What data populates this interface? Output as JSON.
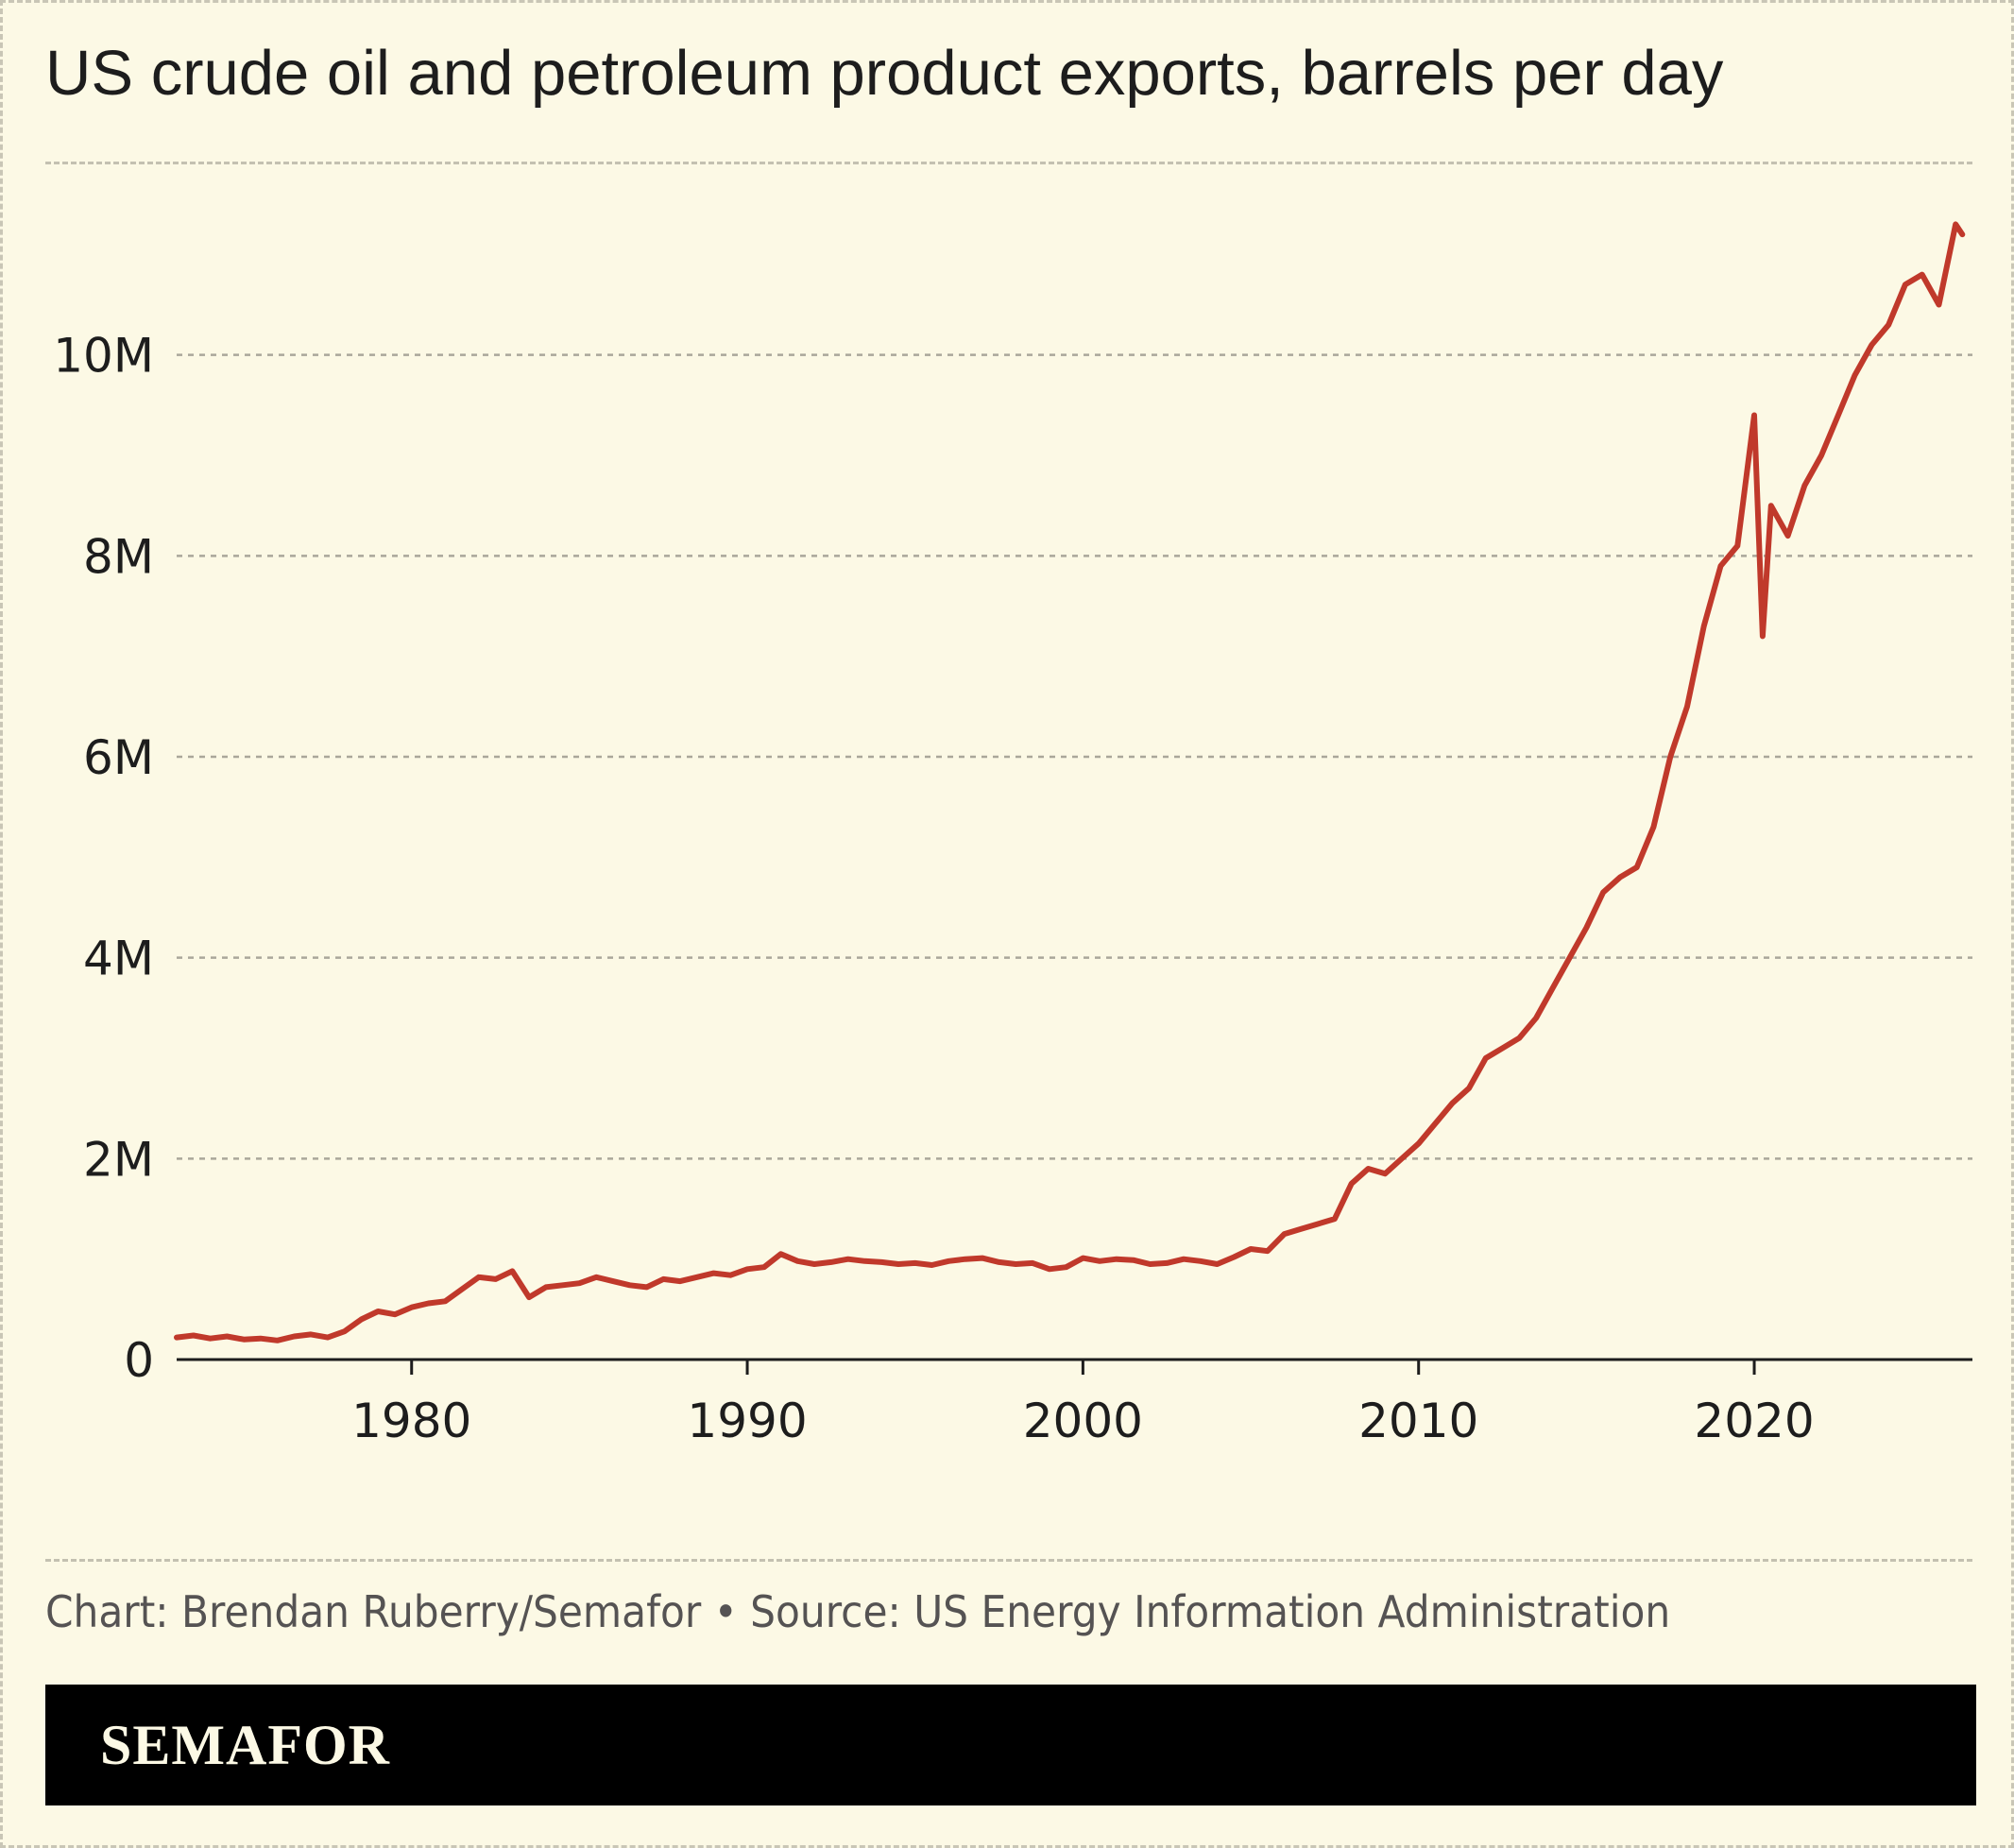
{
  "title": "US crude oil and petroleum product exports, barrels per day",
  "credit": "Chart: Brendan Ruberry/Semafor • Source: US Energy Information Administration",
  "brand": "SEMAFOR",
  "colors": {
    "background": "#fcf9e5",
    "line": "#c0392b",
    "text": "#1d1d1d",
    "grid": "#aaa79a",
    "brand_bar": "#000000"
  },
  "chart_data": {
    "type": "line",
    "title": "US crude oil and petroleum product exports, barrels per day",
    "xlabel": "",
    "ylabel": "",
    "xlim": [
      1973,
      2026.5
    ],
    "ylim": [
      0,
      12000000
    ],
    "x_ticks": [
      {
        "value": 1980,
        "label": "1980"
      },
      {
        "value": 1990,
        "label": "1990"
      },
      {
        "value": 2000,
        "label": "2000"
      },
      {
        "value": 2010,
        "label": "2010"
      },
      {
        "value": 2020,
        "label": "2020"
      }
    ],
    "y_ticks": [
      {
        "value": 0,
        "label": "0"
      },
      {
        "value": 2000000,
        "label": "2M"
      },
      {
        "value": 4000000,
        "label": "4M"
      },
      {
        "value": 6000000,
        "label": "6M"
      },
      {
        "value": 8000000,
        "label": "8M"
      },
      {
        "value": 10000000,
        "label": "10M"
      }
    ],
    "grid": "horizontal dashed",
    "legend": "none",
    "series": [
      {
        "x": [
          1973.0,
          1973.5,
          1974.0,
          1974.5,
          1975.0,
          1975.5,
          1976.0,
          1976.5,
          1977.0,
          1977.5,
          1978.0,
          1978.5,
          1979.0,
          1979.5,
          1980.0,
          1980.5,
          1981.0,
          1981.5,
          1982.0,
          1982.5,
          1983.0,
          1983.5,
          1984.0,
          1984.5,
          1985.0,
          1985.5,
          1986.0,
          1986.5,
          1987.0,
          1987.5,
          1988.0,
          1988.5,
          1989.0,
          1989.5,
          1990.0,
          1990.5,
          1991.0,
          1991.5,
          1992.0,
          1992.5,
          1993.0,
          1993.5,
          1994.0,
          1994.5,
          1995.0,
          1995.5,
          1996.0,
          1996.5,
          1997.0,
          1997.5,
          1998.0,
          1998.5,
          1999.0,
          1999.5,
          2000.0,
          2000.5,
          2001.0,
          2001.5,
          2002.0,
          2002.5,
          2003.0,
          2003.5,
          2004.0,
          2004.5,
          2005.0,
          2005.5,
          2006.0,
          2006.5,
          2007.0,
          2007.5,
          2008.0,
          2008.5,
          2009.0,
          2009.5,
          2010.0,
          2010.5,
          2011.0,
          2011.5,
          2012.0,
          2012.5,
          2013.0,
          2013.5,
          2014.0,
          2014.5,
          2015.0,
          2015.5,
          2016.0,
          2016.5,
          2017.0,
          2017.5,
          2018.0,
          2018.5,
          2019.0,
          2019.5,
          2020.0,
          2020.25,
          2020.5,
          2021.0,
          2021.5,
          2022.0,
          2022.5,
          2023.0,
          2023.5,
          2024.0,
          2024.5,
          2025.0,
          2025.5,
          2026.0,
          2026.2
        ],
        "y": [
          220000,
          240000,
          210000,
          230000,
          200000,
          210000,
          190000,
          230000,
          250000,
          220000,
          280000,
          400000,
          480000,
          450000,
          520000,
          560000,
          580000,
          700000,
          820000,
          800000,
          880000,
          620000,
          720000,
          740000,
          760000,
          820000,
          780000,
          740000,
          720000,
          800000,
          780000,
          820000,
          860000,
          840000,
          900000,
          920000,
          1050000,
          980000,
          950000,
          970000,
          1000000,
          980000,
          970000,
          950000,
          960000,
          940000,
          980000,
          1000000,
          1010000,
          970000,
          950000,
          960000,
          900000,
          920000,
          1010000,
          980000,
          1000000,
          990000,
          950000,
          960000,
          1000000,
          980000,
          950000,
          1020000,
          1100000,
          1080000,
          1250000,
          1300000,
          1350000,
          1400000,
          1750000,
          1900000,
          1850000,
          2000000,
          2150000,
          2350000,
          2550000,
          2700000,
          3000000,
          3100000,
          3200000,
          3400000,
          3700000,
          4000000,
          4300000,
          4650000,
          4800000,
          4900000,
          5300000,
          6000000,
          6500000,
          7300000,
          7900000,
          8100000,
          9400000,
          7200000,
          8500000,
          8200000,
          8700000,
          9000000,
          9400000,
          9800000,
          10100000,
          10300000,
          10700000,
          10800000,
          10500000,
          11300000,
          11200000
        ]
      }
    ]
  }
}
